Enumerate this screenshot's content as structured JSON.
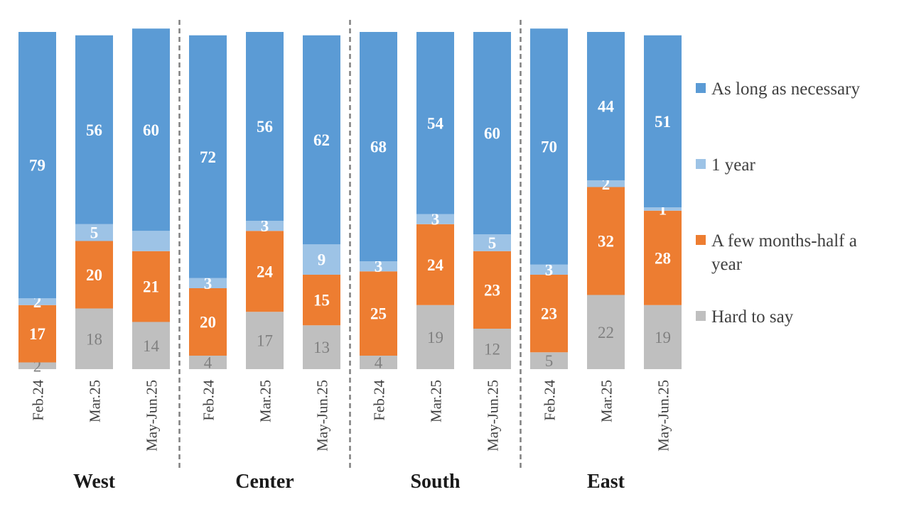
{
  "chart_data": {
    "type": "bar",
    "stacked": true,
    "categories": [
      "Feb.24",
      "Mar.25",
      "May-Jun.25",
      "Feb.24",
      "Mar.25",
      "May-Jun.25",
      "Feb.24",
      "Mar.25",
      "May-Jun.25",
      "Feb.24",
      "Mar.25",
      "May-Jun.25"
    ],
    "groups": [
      {
        "name": "West",
        "categories": [
          "Feb.24",
          "Mar.25",
          "May-Jun.25"
        ]
      },
      {
        "name": "Center",
        "categories": [
          "Feb.24",
          "Mar.25",
          "May-Jun.25"
        ]
      },
      {
        "name": "South",
        "categories": [
          "Feb.24",
          "Mar.25",
          "May-Jun.25"
        ]
      },
      {
        "name": "East",
        "categories": [
          "Feb.24",
          "Mar.25",
          "May-Jun.25"
        ]
      }
    ],
    "series": [
      {
        "name": "Hard to say",
        "color": "#bfbfbf",
        "label_color": "#808080",
        "values": [
          2,
          18,
          14,
          4,
          17,
          13,
          4,
          19,
          12,
          5,
          22,
          19
        ]
      },
      {
        "name": "A few months-half a year",
        "color": "#ed7d31",
        "label_color": "#ffffff",
        "values": [
          17,
          20,
          21,
          20,
          24,
          15,
          25,
          24,
          23,
          23,
          32,
          28
        ]
      },
      {
        "name": "1 year",
        "color": "#9dc3e6",
        "label_color": "#ffffff",
        "values": [
          2,
          5,
          6,
          3,
          3,
          9,
          3,
          3,
          5,
          3,
          2,
          1
        ]
      },
      {
        "name": "As long as necessary",
        "color": "#5b9bd5",
        "label_color": "#ffffff",
        "values": [
          79,
          56,
          60,
          72,
          56,
          62,
          68,
          54,
          60,
          70,
          44,
          51
        ]
      }
    ],
    "data_labels": {
      "Hard to say": [
        "2",
        "18",
        "14",
        "4",
        "17",
        "13",
        "4",
        "19",
        "12",
        "5",
        "22",
        "19"
      ],
      "A few months-half a year": [
        "17",
        "20",
        "21",
        "20",
        "24",
        "15",
        "25",
        "24",
        "23",
        "23",
        "32",
        "28"
      ],
      "1 year": [
        "2",
        "5",
        "",
        "3",
        "3",
        "9",
        "3",
        "3",
        "5",
        "3",
        "2",
        "1"
      ],
      "As long as necessary": [
        "79",
        "56",
        "60",
        "72",
        "56",
        "62",
        "68",
        "54",
        "60",
        "70",
        "44",
        "51"
      ]
    },
    "legend": {
      "position": "right",
      "order": [
        "As long as necessary",
        "1 year",
        "A few months-half a year",
        "Hard to say"
      ],
      "entries": [
        {
          "lines": [
            "As long as necessary"
          ],
          "color": "#5b9bd5"
        },
        {
          "lines": [
            "1 year"
          ],
          "color": "#9dc3e6"
        },
        {
          "lines": [
            "A few months-half a",
            "year"
          ],
          "color": "#ed7d31"
        },
        {
          "lines": [
            "Hard to say"
          ],
          "color": "#bfbfbf"
        }
      ]
    },
    "ylim": [
      0,
      100
    ],
    "grid": false,
    "group_separators": "dashed"
  }
}
